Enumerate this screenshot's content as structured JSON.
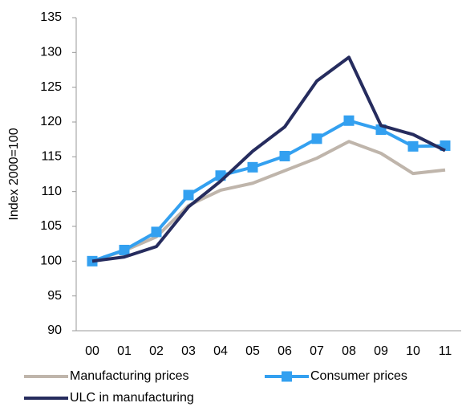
{
  "chart_data": {
    "type": "line",
    "y_label": "Index 2000=100",
    "categories": [
      "00",
      "01",
      "02",
      "03",
      "04",
      "05",
      "06",
      "07",
      "08",
      "09",
      "10",
      "11"
    ],
    "series": [
      {
        "name": "Manufacturing prices",
        "color": "#bfb5ab",
        "marker": "none",
        "values": [
          100,
          101.5,
          103.5,
          108,
          110.2,
          111.2,
          113,
          114.8,
          117.2,
          115.5,
          112.6,
          113.1
        ]
      },
      {
        "name": "Consumer prices",
        "color": "#33a0f0",
        "marker": "square",
        "values": [
          100,
          101.6,
          104.2,
          109.5,
          112.3,
          113.5,
          115.1,
          117.6,
          120.2,
          118.9,
          116.5,
          116.6
        ]
      },
      {
        "name": "ULC in manufacturing",
        "color": "#262c5e",
        "marker": "none",
        "values": [
          100,
          100.6,
          102.1,
          107.8,
          111.5,
          115.8,
          119.3,
          125.9,
          129.3,
          119.5,
          118.2,
          115.9
        ]
      }
    ],
    "ylim": [
      90,
      135
    ],
    "yticks": [
      90,
      95,
      100,
      105,
      110,
      115,
      120,
      125,
      130,
      135
    ],
    "grid": false,
    "legend": "bottom"
  }
}
